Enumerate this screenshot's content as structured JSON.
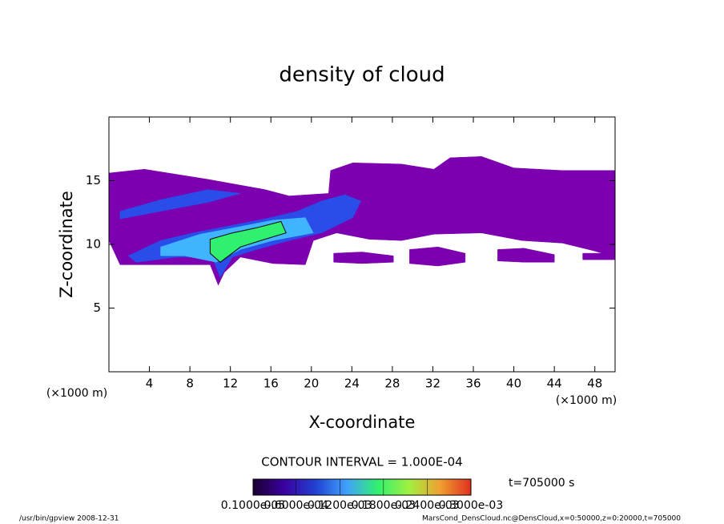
{
  "chart_data": {
    "type": "contour",
    "title": "density of cloud",
    "x_label": "X-coordinate",
    "y_label": "Z-coordinate",
    "y_unit": "(×1000 m)",
    "x_unit": "(×1000 m)",
    "xlim": [
      0,
      50
    ],
    "ylim": [
      0,
      20
    ],
    "xticks": [
      4,
      8,
      12,
      16,
      20,
      24,
      28,
      32,
      36,
      40,
      44,
      48
    ],
    "yticks": [
      5,
      10,
      15
    ],
    "contour_interval": "CONTOUR INTERVAL = 1.000E-04",
    "time_label": "t=705000 s",
    "regions": [
      {
        "level": 1e-06,
        "color": "#7c00b0",
        "x": [
          0,
          3.5,
          9.8,
          15.4,
          17.8,
          21.7,
          21.9,
          24.1,
          28.9,
          32.1,
          33.7,
          36.8,
          40,
          44.8,
          50,
          50,
          47.9,
          44.8,
          40.8,
          36.8,
          32.1,
          28.9,
          25.7,
          22.5,
          20.2,
          19.4,
          16.2,
          13,
          11.4,
          10.8,
          10,
          5.1,
          1.9,
          1.1,
          0
        ],
        "z": [
          15.6,
          15.9,
          15.1,
          14.3,
          13.8,
          14,
          15.8,
          16.4,
          16.3,
          15.9,
          16.8,
          16.9,
          16,
          15.8,
          15.8,
          9,
          9.5,
          10.1,
          10.3,
          10.9,
          10.8,
          10.3,
          10.4,
          10.9,
          10.3,
          8.4,
          8.5,
          9,
          7.8,
          6.8,
          8.4,
          8.4,
          8.4,
          8.4,
          10.3
        ]
      },
      {
        "level": 1e-06,
        "color": "#7c00b0",
        "x": [
          22.2,
          25,
          28.1,
          28.1,
          25,
          22.2
        ],
        "z": [
          9.3,
          9.4,
          9.1,
          8.6,
          8.5,
          8.6
        ]
      },
      {
        "level": 1e-06,
        "color": "#7c00b0",
        "x": [
          29.7,
          32.5,
          35.2,
          35.2,
          32.5,
          29.7
        ],
        "z": [
          9.6,
          9.8,
          9.3,
          8.6,
          8.3,
          8.5
        ]
      },
      {
        "level": 1e-06,
        "color": "#7c00b0",
        "x": [
          38.4,
          41,
          44,
          44,
          41,
          38.4
        ],
        "z": [
          9.6,
          9.7,
          9.2,
          8.6,
          8.6,
          8.7
        ]
      },
      {
        "level": 1e-06,
        "color": "#7c00b0",
        "x": [
          46.8,
          50,
          50,
          46.8
        ],
        "z": [
          9.3,
          9.3,
          8.8,
          8.8
        ]
      },
      {
        "level": 6e-05,
        "color": "#2a4ce8",
        "x": [
          1.1,
          5.1,
          9.8,
          13,
          9.8,
          5.1,
          1.1
        ],
        "z": [
          12.6,
          13.5,
          14.3,
          14,
          13.3,
          12.6,
          12
        ]
      },
      {
        "level": 6e-05,
        "color": "#2a4ce8",
        "x": [
          1.9,
          5.1,
          8.3,
          12.2,
          15.4,
          18.6,
          21,
          23.3,
          24.9,
          24.1,
          21,
          17.8,
          14.6,
          12.2,
          11,
          10.2,
          6.7,
          2.7
        ],
        "z": [
          9.1,
          10.3,
          10.9,
          11.5,
          12,
          12.6,
          13.4,
          13.9,
          13.4,
          12.1,
          10.9,
          10.3,
          9.6,
          9,
          7.4,
          9,
          9,
          8.6
        ]
      },
      {
        "level": 0.00012,
        "color": "#40b4ff",
        "x": [
          5.1,
          9,
          13,
          16.2,
          19.4,
          20.2,
          16.2,
          13,
          10.6,
          7.5,
          5.1
        ],
        "z": [
          9.8,
          10.8,
          11.4,
          11.9,
          12.1,
          10.9,
          10.3,
          9.6,
          8.6,
          9.1,
          9.1
        ]
      },
      {
        "level": 0.00018,
        "color": "#30f070",
        "x": [
          10,
          12.2,
          14.6,
          17,
          17.5,
          15.4,
          13,
          11,
          10
        ],
        "z": [
          10.4,
          10.9,
          11.3,
          11.8,
          10.9,
          10.4,
          9.8,
          8.6,
          9.3
        ]
      }
    ],
    "colorbar": {
      "colors": [
        "#1a0030",
        "#3a00a0",
        "#2040d0",
        "#40a0ff",
        "#30f070",
        "#a0f040",
        "#f0a030",
        "#e03020"
      ],
      "lim": [
        1e-06,
        0.0003
      ],
      "ticks": [
        {
          "value": 1e-06,
          "label": "0.1000e-05"
        },
        {
          "value": 6e-05,
          "label": "0.6000e-04"
        },
        {
          "value": 0.00012,
          "label": "0.1200e-03"
        },
        {
          "value": 0.00018,
          "label": "0.1800e-03"
        },
        {
          "value": 0.00024,
          "label": "0.2400e-03"
        },
        {
          "value": 0.0003,
          "label": "0.3000e-03"
        }
      ]
    },
    "footer_left": "/usr/bin/gpview  2008-12-31",
    "footer_right": "MarsCond_DensCloud.nc@DensCloud,x=0:50000,z=0:20000,t=705000"
  }
}
